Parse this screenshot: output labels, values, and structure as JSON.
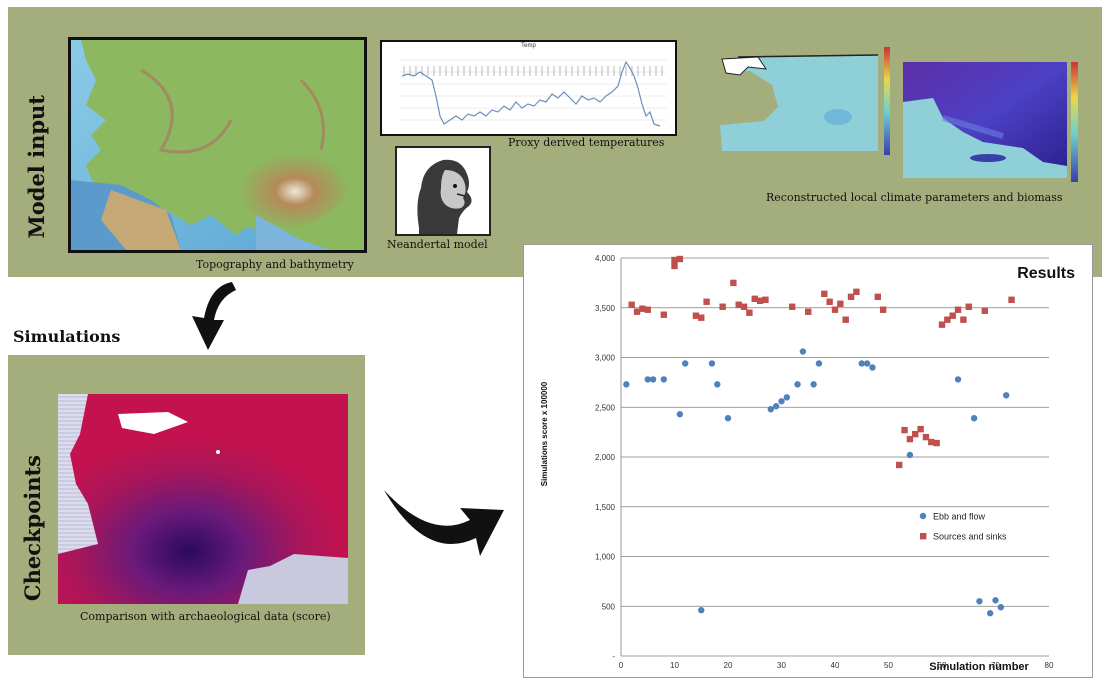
{
  "model_input": {
    "label": "Model input",
    "topo_caption": "Topography and bathymetry",
    "proxy_title": "Temp",
    "proxy_caption": "Proxy derived temperatures",
    "neandertal_caption": "Neandertal model",
    "climate_caption": "Reconstructed local climate parameters and biomass"
  },
  "simulations": {
    "label": "Simulations"
  },
  "checkpoints": {
    "label": "Checkpoints",
    "caption": "Comparison with archaeological data (score)"
  },
  "colors": {
    "panel": "#a4ad7c",
    "ebb": "#4f81bd",
    "sources": "#c0504d"
  },
  "chart_data": {
    "type": "scatter",
    "title": "Results",
    "xlabel": "Simulation number",
    "ylabel": "Simulations score x 100000",
    "xlim": [
      0,
      80
    ],
    "ylim": [
      0,
      4000
    ],
    "x_ticks": [
      "0",
      "10",
      "20",
      "30",
      "40",
      "50",
      "60",
      "70",
      "80"
    ],
    "y_ticks": [
      "-",
      "500",
      "1,000",
      "1,500",
      "2,000",
      "2,500",
      "3,000",
      "3,500",
      "4,000"
    ],
    "grid": "horizontal",
    "legend_position": "right-middle",
    "series": [
      {
        "name": "Ebb and flow",
        "marker": "circle",
        "points": [
          [
            1,
            2730
          ],
          [
            5,
            2780
          ],
          [
            6,
            2780
          ],
          [
            8,
            2780
          ],
          [
            11,
            2430
          ],
          [
            12,
            2940
          ],
          [
            15,
            460
          ],
          [
            17,
            2940
          ],
          [
            18,
            2730
          ],
          [
            20,
            2390
          ],
          [
            28,
            2480
          ],
          [
            29,
            2510
          ],
          [
            30,
            2560
          ],
          [
            31,
            2600
          ],
          [
            33,
            2730
          ],
          [
            34,
            3060
          ],
          [
            36,
            2730
          ],
          [
            37,
            2940
          ],
          [
            45,
            2940
          ],
          [
            46,
            2940
          ],
          [
            47,
            2900
          ],
          [
            54,
            2020
          ],
          [
            63,
            2780
          ],
          [
            66,
            2390
          ],
          [
            67,
            550
          ],
          [
            69,
            430
          ],
          [
            70,
            560
          ],
          [
            71,
            490
          ],
          [
            72,
            2620
          ]
        ]
      },
      {
        "name": "Sources and sinks",
        "marker": "square",
        "points": [
          [
            2,
            3530
          ],
          [
            3,
            3460
          ],
          [
            4,
            3490
          ],
          [
            5,
            3480
          ],
          [
            8,
            3430
          ],
          [
            10,
            3920
          ],
          [
            10,
            3980
          ],
          [
            11,
            3990
          ],
          [
            14,
            3420
          ],
          [
            15,
            3400
          ],
          [
            16,
            3560
          ],
          [
            19,
            3510
          ],
          [
            21,
            3750
          ],
          [
            22,
            3530
          ],
          [
            23,
            3510
          ],
          [
            24,
            3450
          ],
          [
            25,
            3590
          ],
          [
            26,
            3570
          ],
          [
            27,
            3580
          ],
          [
            32,
            3510
          ],
          [
            35,
            3460
          ],
          [
            38,
            3640
          ],
          [
            39,
            3560
          ],
          [
            40,
            3480
          ],
          [
            41,
            3540
          ],
          [
            42,
            3380
          ],
          [
            43,
            3610
          ],
          [
            44,
            3660
          ],
          [
            48,
            3610
          ],
          [
            49,
            3480
          ],
          [
            52,
            1920
          ],
          [
            53,
            2270
          ],
          [
            54,
            2180
          ],
          [
            55,
            2230
          ],
          [
            56,
            2280
          ],
          [
            57,
            2200
          ],
          [
            58,
            2150
          ],
          [
            59,
            2140
          ],
          [
            60,
            3330
          ],
          [
            61,
            3380
          ],
          [
            62,
            3420
          ],
          [
            63,
            3480
          ],
          [
            64,
            3380
          ],
          [
            65,
            3510
          ],
          [
            68,
            3470
          ],
          [
            73,
            3580
          ]
        ]
      }
    ]
  }
}
